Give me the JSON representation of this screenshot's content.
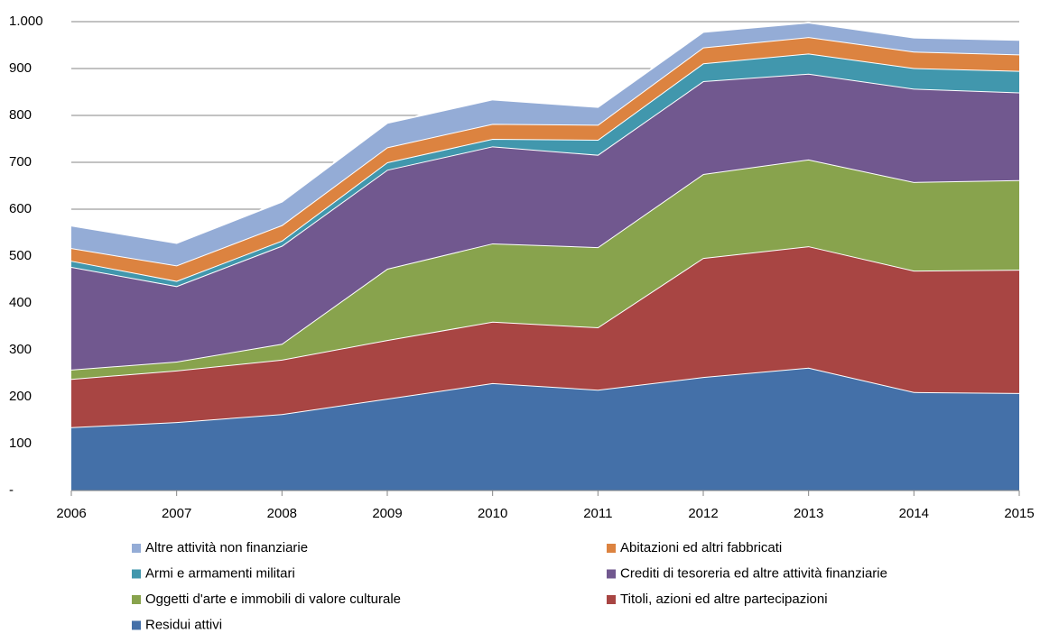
{
  "chart_data": {
    "type": "stacked_area",
    "categories": [
      "2006",
      "2007",
      "2008",
      "2009",
      "2010",
      "2011",
      "2012",
      "2013",
      "2014",
      "2015"
    ],
    "series": [
      {
        "name": "Residui attivi",
        "color": "#4470a8",
        "values": [
          135,
          146,
          163,
          196,
          229,
          215,
          242,
          262,
          210,
          208
        ]
      },
      {
        "name": "Titoli, azioni ed altre partecipazioni",
        "color": "#a84543",
        "values": [
          103,
          110,
          116,
          125,
          131,
          133,
          254,
          259,
          259,
          263
        ]
      },
      {
        "name": "Oggetti d'arte e immobili di valore culturale",
        "color": "#88a34d",
        "values": [
          20,
          19,
          34,
          152,
          167,
          171,
          179,
          185,
          189,
          191
        ]
      },
      {
        "name": "Crediti di tesoreria ed altre attività finanziarie",
        "color": "#71588f",
        "values": [
          219,
          161,
          209,
          211,
          207,
          197,
          198,
          183,
          199,
          187
        ]
      },
      {
        "name": "Armi e armamenti militari",
        "color": "#4197ad",
        "values": [
          13,
          11,
          11,
          16,
          16,
          32,
          38,
          43,
          44,
          46
        ]
      },
      {
        "name": "Abitazioni ed altri fabbricati",
        "color": "#dc8340",
        "values": [
          27,
          33,
          33,
          32,
          32,
          32,
          34,
          35,
          35,
          35
        ]
      },
      {
        "name": "Altre attività non finanziarie",
        "color": "#94acd6",
        "values": [
          48,
          48,
          50,
          52,
          52,
          38,
          33,
          31,
          30,
          31
        ]
      }
    ],
    "ylim": [
      0,
      1000
    ],
    "yticks": [
      {
        "value": 0,
        "label": "-"
      },
      100,
      200,
      300,
      400,
      500,
      600,
      700,
      800,
      900,
      {
        "value": 1000,
        "label": "1.000"
      }
    ],
    "grid": true
  }
}
